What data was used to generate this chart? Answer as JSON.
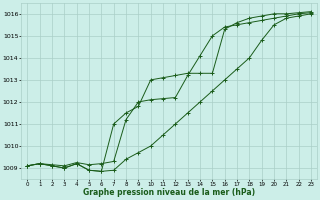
{
  "xlabel": "Graphe pression niveau de la mer (hPa)",
  "x_ticks": [
    0,
    1,
    2,
    3,
    4,
    5,
    6,
    7,
    8,
    9,
    10,
    11,
    12,
    13,
    14,
    15,
    16,
    17,
    18,
    19,
    20,
    21,
    22,
    23
  ],
  "ylim": [
    1008.5,
    1016.5
  ],
  "xlim": [
    -0.5,
    23.5
  ],
  "yticks": [
    1009,
    1010,
    1011,
    1012,
    1013,
    1014,
    1015,
    1016
  ],
  "bg_color": "#cceee8",
  "grid_color": "#aacfc8",
  "line_color": "#1a5c1a",
  "series1": {
    "x": [
      0,
      1,
      2,
      3,
      4,
      5,
      6,
      7,
      8,
      9,
      10,
      11,
      12,
      13,
      14,
      15,
      16,
      17,
      18,
      19,
      20,
      21,
      22,
      23
    ],
    "y": [
      1009.1,
      1009.2,
      1009.1,
      1009.0,
      1009.2,
      1008.9,
      1008.85,
      1008.9,
      1009.4,
      1009.7,
      1010.0,
      1010.5,
      1011.0,
      1011.5,
      1012.0,
      1012.5,
      1013.0,
      1013.5,
      1014.0,
      1014.8,
      1015.5,
      1015.8,
      1015.9,
      1016.0
    ]
  },
  "series2": {
    "x": [
      0,
      1,
      2,
      3,
      4,
      5,
      6,
      7,
      8,
      9,
      10,
      11,
      12,
      13,
      14,
      15,
      16,
      17,
      18,
      19,
      20,
      21,
      22,
      23
    ],
    "y": [
      1009.1,
      1009.2,
      1009.1,
      1009.0,
      1009.2,
      1008.9,
      1008.85,
      1011.0,
      1011.5,
      1011.8,
      1013.0,
      1013.1,
      1013.2,
      1013.3,
      1013.3,
      1013.3,
      1015.3,
      1015.6,
      1015.8,
      1015.9,
      1016.0,
      1016.0,
      1016.05,
      1016.1
    ]
  },
  "series3": {
    "x": [
      0,
      1,
      2,
      3,
      4,
      5,
      6,
      7,
      8,
      9,
      10,
      11,
      12,
      13,
      14,
      15,
      16,
      17,
      18,
      19,
      20,
      21,
      22,
      23
    ],
    "y": [
      1009.1,
      1009.2,
      1009.15,
      1009.1,
      1009.25,
      1009.15,
      1009.2,
      1009.3,
      1011.2,
      1012.0,
      1012.1,
      1012.15,
      1012.2,
      1013.2,
      1014.1,
      1015.0,
      1015.4,
      1015.5,
      1015.6,
      1015.7,
      1015.8,
      1015.9,
      1016.0,
      1016.05
    ]
  }
}
